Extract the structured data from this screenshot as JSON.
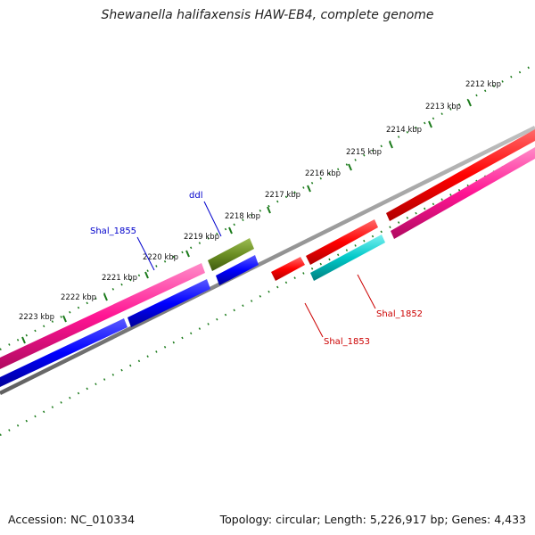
{
  "title": "Shewanella halifaxensis HAW-EB4, complete genome",
  "accession": "Accession: NC_010334",
  "summary": "Topology: circular; Length: 5,226,917 bp; Genes: 4,433",
  "ticks": [
    "2212 kbp",
    "2213 kbp",
    "2214 kbp",
    "2215 kbp",
    "2216 kbp",
    "2217 kbp",
    "2218 kbp",
    "2219 kbp",
    "2220 kbp",
    "2221 kbp",
    "2222 kbp",
    "2223 kbp"
  ],
  "genes": {
    "ddl": "ddl",
    "shal1855": "Shal_1855",
    "shal1852": "Shal_1852",
    "shal1853": "Shal_1853"
  },
  "colors": {
    "backbone": "#808080",
    "tick": "#1a7a1a",
    "feature_red": "#ff0000",
    "feature_magenta": "#ff1493",
    "feature_blue": "#0000ff",
    "feature_olive": "#6b8e23",
    "feature_cyan": "#00c8c8",
    "label_blue": "#0000cc",
    "label_red": "#cc0000"
  }
}
